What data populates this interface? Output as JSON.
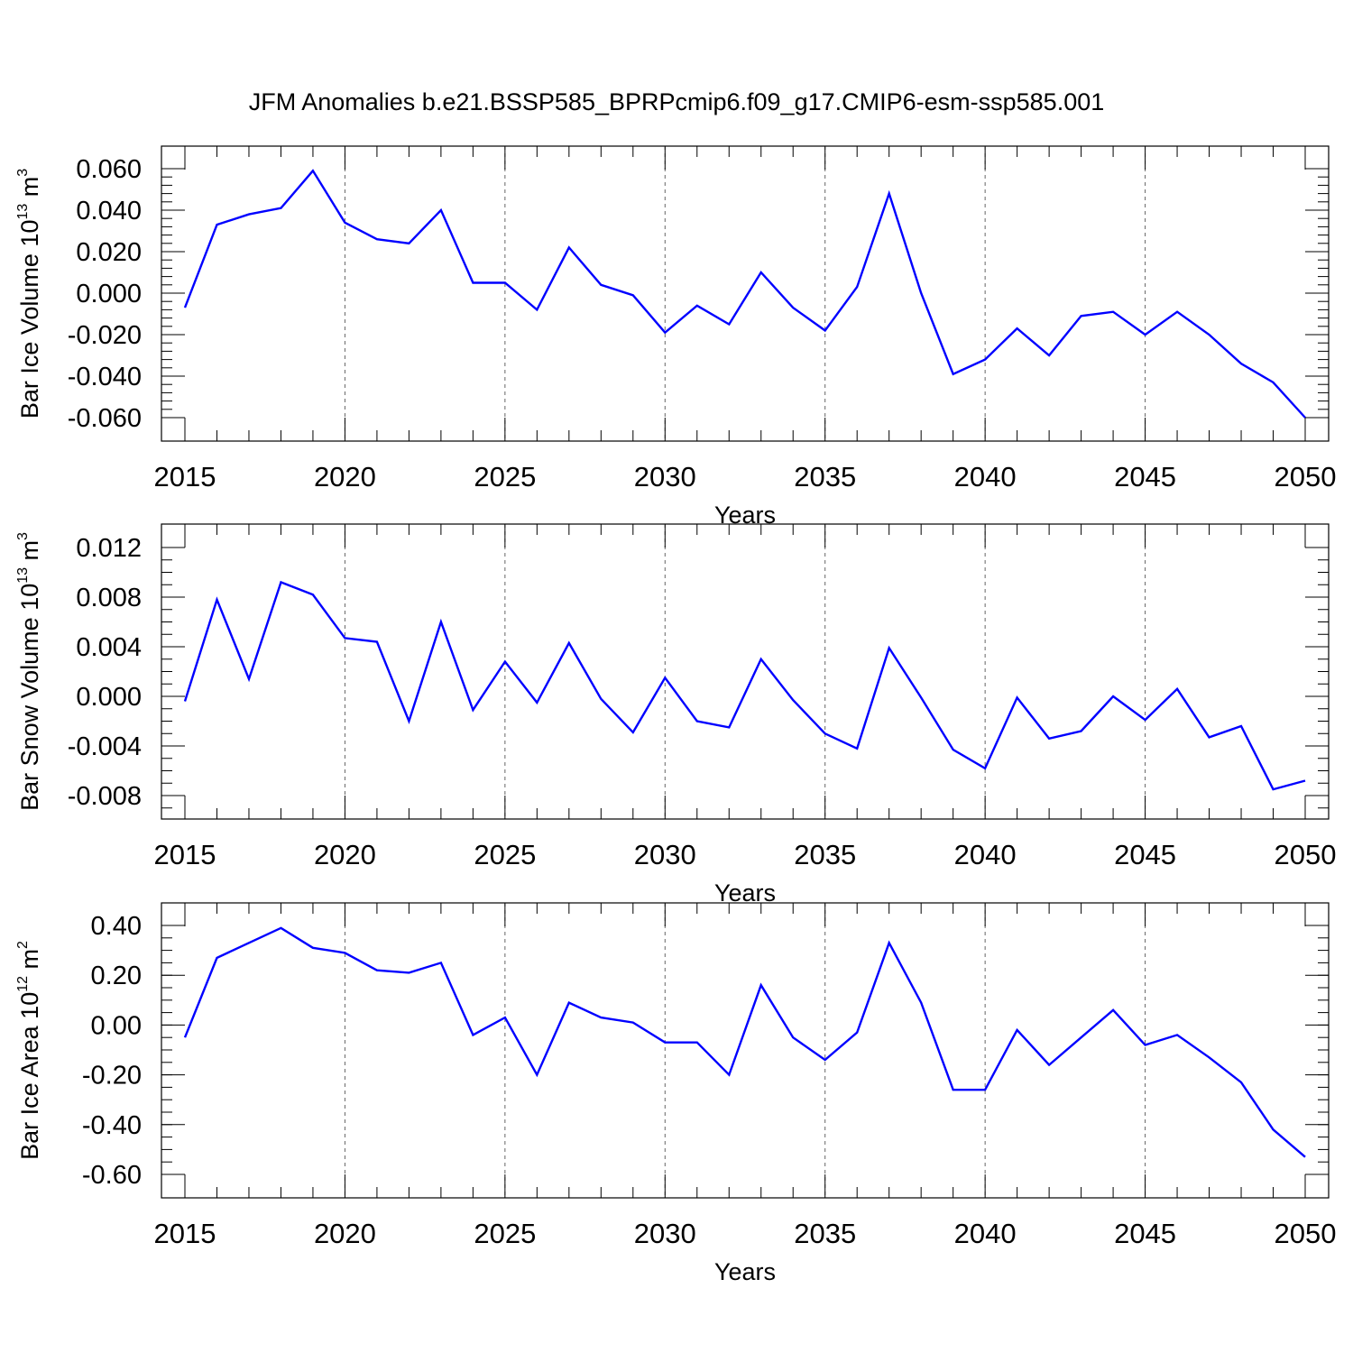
{
  "title": "JFM Anomalies b.e21.BSSP585_BPRPcmip6.f09_g17.CMIP6-esm-ssp585.001",
  "line_color": "#0000ff",
  "chart_data": [
    {
      "type": "line",
      "title": "JFM Anomalies b.e21.BSSP585_BPRPcmip6.f09_g17.CMIP6-esm-ssp585.001",
      "xlabel": "Years",
      "ylabel": {
        "text": "Bar Ice Volume 10",
        "sup": "13",
        "unit": " m",
        "unit_sup": "3"
      },
      "xlim": [
        2015,
        2050
      ],
      "ylim": [
        -0.06,
        0.06
      ],
      "xticks": [
        "2015",
        "2020",
        "2025",
        "2030",
        "2035",
        "2040",
        "2045",
        "2050"
      ],
      "yticks": [
        "0.060",
        "0.040",
        "0.020",
        "0.000",
        "-0.020",
        "-0.040",
        "-0.060"
      ],
      "grid": "vertical dashed at major x ticks",
      "x": [
        2015,
        2016,
        2017,
        2018,
        2019,
        2020,
        2021,
        2022,
        2023,
        2024,
        2025,
        2026,
        2027,
        2028,
        2029,
        2030,
        2031,
        2032,
        2033,
        2034,
        2035,
        2036,
        2037,
        2038,
        2039,
        2040,
        2041,
        2042,
        2043,
        2044,
        2045,
        2046,
        2047,
        2048,
        2049,
        2050
      ],
      "series": [
        {
          "values": [
            -0.007,
            0.033,
            0.038,
            0.041,
            0.059,
            0.034,
            0.026,
            0.024,
            0.04,
            0.005,
            0.005,
            -0.008,
            0.022,
            0.004,
            -0.001,
            -0.019,
            -0.006,
            -0.015,
            0.01,
            -0.007,
            -0.018,
            0.003,
            0.048,
            0.0,
            -0.039,
            -0.032,
            -0.017,
            -0.03,
            -0.011,
            -0.009,
            -0.02,
            -0.009,
            -0.02,
            -0.034,
            -0.043,
            -0.06
          ]
        }
      ]
    },
    {
      "type": "line",
      "xlabel": "Years",
      "ylabel": {
        "text": "Bar Snow Volume 10",
        "sup": "13",
        "unit": " m",
        "unit_sup": "3"
      },
      "xlim": [
        2015,
        2050
      ],
      "ylim": [
        -0.009,
        0.012
      ],
      "xticks": [
        "2015",
        "2020",
        "2025",
        "2030",
        "2035",
        "2040",
        "2045",
        "2050"
      ],
      "yticks": [
        "0.012",
        "0.008",
        "0.004",
        "0.000",
        "-0.004",
        "-0.008"
      ],
      "grid": "vertical dashed at major x ticks",
      "x": [
        2015,
        2016,
        2017,
        2018,
        2019,
        2020,
        2021,
        2022,
        2023,
        2024,
        2025,
        2026,
        2027,
        2028,
        2029,
        2030,
        2031,
        2032,
        2033,
        2034,
        2035,
        2036,
        2037,
        2038,
        2039,
        2040,
        2041,
        2042,
        2043,
        2044,
        2045,
        2046,
        2047,
        2048,
        2049,
        2050
      ],
      "series": [
        {
          "values": [
            -0.0004,
            0.0078,
            0.0014,
            0.0092,
            0.0082,
            0.0047,
            0.0044,
            -0.002,
            0.006,
            -0.0011,
            0.0028,
            -0.0005,
            0.0043,
            -0.0002,
            -0.0029,
            0.0015,
            -0.002,
            -0.0025,
            0.003,
            -0.0003,
            -0.003,
            -0.0042,
            0.0039,
            -0.0001,
            -0.0043,
            -0.0058,
            -0.0001,
            -0.0034,
            -0.0028,
            0.0,
            -0.0019,
            0.0006,
            -0.0033,
            -0.0024,
            -0.0075,
            -0.0068
          ]
        }
      ]
    },
    {
      "type": "line",
      "xlabel": "Years",
      "ylabel": {
        "text": "Bar Ice Area 10",
        "sup": "12",
        "unit": " m",
        "unit_sup": "2"
      },
      "xlim": [
        2015,
        2050
      ],
      "ylim": [
        -0.6,
        0.4
      ],
      "xticks": [
        "2015",
        "2020",
        "2025",
        "2030",
        "2035",
        "2040",
        "2045",
        "2050"
      ],
      "yticks": [
        "0.40",
        "0.20",
        "0.00",
        "-0.20",
        "-0.40",
        "-0.60"
      ],
      "grid": "vertical dashed at major x ticks",
      "x": [
        2015,
        2016,
        2017,
        2018,
        2019,
        2020,
        2021,
        2022,
        2023,
        2024,
        2025,
        2026,
        2027,
        2028,
        2029,
        2030,
        2031,
        2032,
        2033,
        2034,
        2035,
        2036,
        2037,
        2038,
        2039,
        2040,
        2041,
        2042,
        2043,
        2044,
        2045,
        2046,
        2047,
        2048,
        2049,
        2050
      ],
      "series": [
        {
          "values": [
            -0.05,
            0.27,
            0.33,
            0.39,
            0.31,
            0.29,
            0.22,
            0.21,
            0.25,
            -0.04,
            0.03,
            -0.2,
            0.09,
            0.03,
            0.01,
            -0.07,
            -0.07,
            -0.2,
            0.16,
            -0.05,
            -0.14,
            -0.03,
            0.33,
            0.09,
            -0.26,
            -0.26,
            -0.02,
            -0.16,
            -0.05,
            0.06,
            -0.08,
            -0.04,
            -0.13,
            -0.23,
            -0.42,
            -0.53
          ]
        }
      ]
    }
  ]
}
